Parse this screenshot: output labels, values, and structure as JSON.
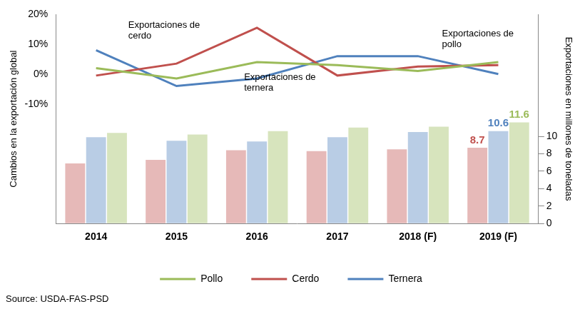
{
  "chart_data": {
    "type": "bar",
    "categories": [
      "2014",
      "2015",
      "2016",
      "2017",
      "2018 (F)",
      "2019 (F)"
    ],
    "y_label": "Cambios en la exportación global",
    "y2_label": "Exportaciones en millones de toneladas",
    "source": "Source: USDA-FAS-PSD",
    "annotations": [
      "Exportaciones de cerdo",
      "Exportaciones de ternera",
      "Exportaciones de pollo"
    ],
    "ylim": [
      -50,
      20
    ],
    "yticks": [
      {
        "value": -10,
        "label": "-10%"
      },
      {
        "value": 0,
        "label": "0%"
      },
      {
        "value": 10,
        "label": "10%"
      },
      {
        "value": 20,
        "label": "20%"
      }
    ],
    "y2lim": [
      0,
      24
    ],
    "y2ticks": [
      0,
      2,
      4,
      6,
      8,
      10
    ],
    "grid": false,
    "legend": "bottom",
    "data_labels": true,
    "series": [
      {
        "name": "Cerdo",
        "type": "bar",
        "axis": "y2",
        "color": "#e6b9b8",
        "values": [
          6.9,
          7.3,
          8.4,
          8.3,
          8.5,
          8.7
        ],
        "value_labels": [
          null,
          null,
          null,
          null,
          null,
          "8.7"
        ]
      },
      {
        "name": "Ternera",
        "type": "bar",
        "axis": "y2",
        "color": "#b9cde5",
        "values": [
          9.9,
          9.5,
          9.4,
          9.9,
          10.5,
          10.6
        ],
        "value_labels": [
          null,
          null,
          null,
          null,
          null,
          "10.6"
        ]
      },
      {
        "name": "Pollo",
        "type": "bar",
        "axis": "y2",
        "color": "#d7e4bd",
        "values": [
          10.4,
          10.2,
          10.6,
          11.0,
          11.1,
          11.6
        ],
        "value_labels": [
          null,
          null,
          null,
          null,
          null,
          "11.6"
        ]
      },
      {
        "name": "Pollo",
        "type": "line",
        "axis": "y",
        "color": "#9bbb59",
        "values": [
          2,
          -1.5,
          4,
          3,
          1,
          4
        ]
      },
      {
        "name": "Cerdo",
        "type": "line",
        "axis": "y",
        "color": "#c0504d",
        "values": [
          -0.5,
          3.5,
          15.5,
          -0.5,
          2.5,
          3
        ]
      },
      {
        "name": "Ternera",
        "type": "line",
        "axis": "y",
        "color": "#4f81bd",
        "values": [
          8,
          -4,
          -1.5,
          6,
          6,
          0
        ]
      }
    ]
  }
}
